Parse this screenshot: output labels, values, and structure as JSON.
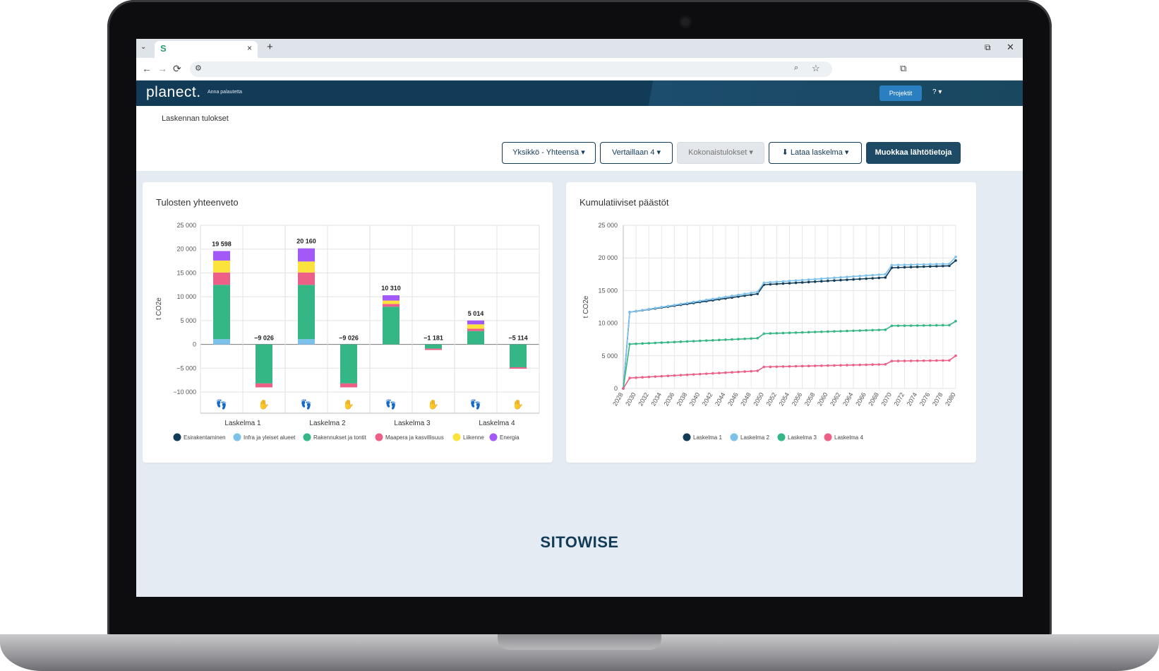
{
  "browser": {
    "tab_favicon": "S",
    "tab_close": "×",
    "new_tab": "+",
    "tab_list": "⌄",
    "win_restore": "⧉",
    "win_close": "✕",
    "back": "←",
    "forward": "→",
    "reload": "⟳",
    "site_info": "⚙",
    "zoom": "⌕",
    "star": "☆",
    "extensions": "⧉"
  },
  "app": {
    "brand": "planect.",
    "feedback": "Anna palautetta",
    "projects": "Projektit",
    "help": "? ▾",
    "page_title": "Laskennan tulokset"
  },
  "toolbar": {
    "unit": "Yksikkö - Yhteensä ▾",
    "compare": "Vertaillaan 4 ▾",
    "totals": "Kokonaistulokset ▾",
    "download": "⬇  Lataa laskelma ▾",
    "edit": "Muokkaa lähtötietoja"
  },
  "footer": {
    "logo": "SITOWISE"
  },
  "colors": {
    "Esirakentaminen": "#123b58",
    "Infra ja yleiset alueet": "#7cc1ec",
    "Rakennukset ja tontit": "#34b784",
    "Maapera ja kasvillisuus": "#ec5f86",
    "Liikenne": "#fbe33c",
    "Energia": "#a259f5"
  },
  "chart_data": [
    {
      "type": "bar",
      "title": "Tulosten yhteenveto",
      "ylabel": "t CO2e",
      "ylim": [
        -10000,
        25000
      ],
      "yticks": [
        25000,
        20000,
        15000,
        10000,
        5000,
        0,
        -5000,
        -10000
      ],
      "ytick_labels": [
        "25 000",
        "20 000",
        "15 000",
        "10 000",
        "5 000",
        "0",
        "−5 000",
        "−10 000"
      ],
      "groups": [
        "Laskelma 1",
        "Laskelma 2",
        "Laskelma 3",
        "Laskelma 4"
      ],
      "bar_icons": [
        "footprint",
        "hand",
        "footprint",
        "hand",
        "footprint",
        "hand",
        "footprint",
        "hand"
      ],
      "icon_glyphs": {
        "footprint": "👣",
        "hand": "✋"
      },
      "legend": [
        "Esirakentaminen",
        "Infra ja yleiset alueet",
        "Rakennukset ja tontit",
        "Maapera ja kasvillisuus",
        "Liikenne",
        "Energia"
      ],
      "bars": [
        {
          "group": "Laskelma 1",
          "kind": "footprint",
          "total_label": "19 598",
          "segments": [
            [
              "Infra ja yleiset alueet",
              1100
            ],
            [
              "Rakennukset ja tontit",
              11400
            ],
            [
              "Maapera ja kasvillisuus",
              2600
            ],
            [
              "Liikenne",
              2500
            ],
            [
              "Energia",
              2000
            ]
          ]
        },
        {
          "group": "Laskelma 1",
          "kind": "hand",
          "total_label": "−9 026",
          "segments": [
            [
              "Rakennukset ja tontit",
              -8200
            ],
            [
              "Maapera ja kasvillisuus",
              -826
            ]
          ]
        },
        {
          "group": "Laskelma 2",
          "kind": "footprint",
          "total_label": "20 160",
          "segments": [
            [
              "Infra ja yleiset alueet",
              1100
            ],
            [
              "Rakennukset ja tontit",
              11400
            ],
            [
              "Maapera ja kasvillisuus",
              2600
            ],
            [
              "Liikenne",
              2300
            ],
            [
              "Energia",
              2760
            ]
          ]
        },
        {
          "group": "Laskelma 2",
          "kind": "hand",
          "total_label": "−9 026",
          "segments": [
            [
              "Rakennukset ja tontit",
              -8200
            ],
            [
              "Maapera ja kasvillisuus",
              -826
            ]
          ]
        },
        {
          "group": "Laskelma 3",
          "kind": "footprint",
          "total_label": "10 310",
          "segments": [
            [
              "Rakennukset ja tontit",
              7900
            ],
            [
              "Maapera ja kasvillisuus",
              600
            ],
            [
              "Liikenne",
              700
            ],
            [
              "Energia",
              1110
            ]
          ]
        },
        {
          "group": "Laskelma 3",
          "kind": "hand",
          "total_label": "−1 181",
          "segments": [
            [
              "Rakennukset ja tontit",
              -900
            ],
            [
              "Maapera ja kasvillisuus",
              -281
            ]
          ]
        },
        {
          "group": "Laskelma 4",
          "kind": "footprint",
          "total_label": "5 014",
          "segments": [
            [
              "Rakennukset ja tontit",
              2800
            ],
            [
              "Maapera ja kasvillisuus",
              500
            ],
            [
              "Liikenne",
              900
            ],
            [
              "Energia",
              814
            ]
          ]
        },
        {
          "group": "Laskelma 4",
          "kind": "hand",
          "total_label": "−5 114",
          "segments": [
            [
              "Rakennukset ja tontit",
              -4800
            ],
            [
              "Maapera ja kasvillisuus",
              -314
            ]
          ]
        }
      ]
    },
    {
      "type": "line",
      "title": "Kumulatiiviset päästöt",
      "ylabel": "t CO2e",
      "xlim": [
        2028,
        2080
      ],
      "ylim": [
        0,
        25000
      ],
      "yticks": [
        25000,
        20000,
        15000,
        10000,
        5000,
        0
      ],
      "ytick_labels": [
        "25 000",
        "20 000",
        "15 000",
        "10 000",
        "5 000",
        "0"
      ],
      "xtick_labels": [
        "2028",
        "2030",
        "2032",
        "2034",
        "2036",
        "2038",
        "2040",
        "2042",
        "2044",
        "2046",
        "2048",
        "2050",
        "2052",
        "2054",
        "2056",
        "2058",
        "2060",
        "2062",
        "2064",
        "2066",
        "2068",
        "2070",
        "2072",
        "2074",
        "2076",
        "2078",
        "2080"
      ],
      "series": [
        {
          "name": "Laskelma 1",
          "color": "#123b58",
          "points": [
            [
              2028,
              0
            ],
            [
              2029,
              11700
            ],
            [
              2049,
              14500
            ],
            [
              2050,
              15900
            ],
            [
              2069,
              17000
            ],
            [
              2070,
              18500
            ],
            [
              2079,
              18800
            ],
            [
              2080,
              19598
            ]
          ]
        },
        {
          "name": "Laskelma 2",
          "color": "#7cc1ec",
          "points": [
            [
              2028,
              0
            ],
            [
              2029,
              11700
            ],
            [
              2049,
              14800
            ],
            [
              2050,
              16200
            ],
            [
              2069,
              17500
            ],
            [
              2070,
              18900
            ],
            [
              2079,
              19100
            ],
            [
              2080,
              20160
            ]
          ]
        },
        {
          "name": "Laskelma 3",
          "color": "#34b784",
          "points": [
            [
              2028,
              0
            ],
            [
              2029,
              6800
            ],
            [
              2049,
              7700
            ],
            [
              2050,
              8400
            ],
            [
              2069,
              9000
            ],
            [
              2070,
              9600
            ],
            [
              2079,
              9700
            ],
            [
              2080,
              10310
            ]
          ]
        },
        {
          "name": "Laskelma 4",
          "color": "#ec5f86",
          "points": [
            [
              2028,
              0
            ],
            [
              2029,
              1600
            ],
            [
              2049,
              2700
            ],
            [
              2050,
              3300
            ],
            [
              2069,
              3700
            ],
            [
              2070,
              4200
            ],
            [
              2079,
              4300
            ],
            [
              2080,
              5014
            ]
          ]
        }
      ]
    }
  ]
}
